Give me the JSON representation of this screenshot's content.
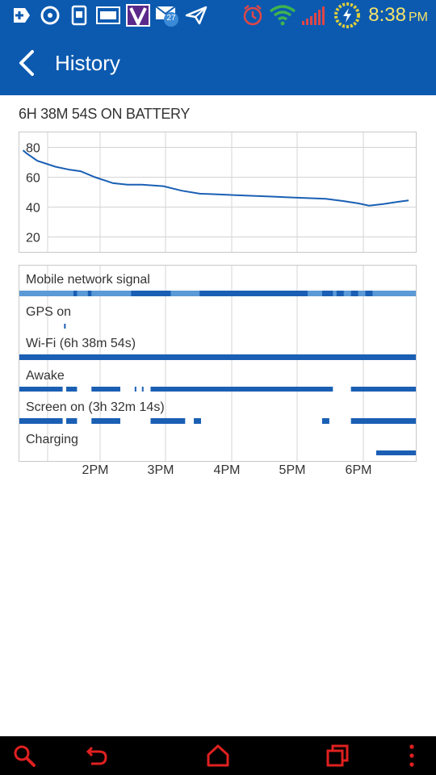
{
  "status_bar": {
    "time": "8:38",
    "ampm": "PM",
    "notification_badge": "27",
    "icons": [
      "add-icon",
      "sync-icon",
      "sd-card-icon",
      "image-icon",
      "verizon-icon",
      "mail-icon",
      "send-icon",
      "alarm-icon",
      "wifi-icon",
      "signal-icon",
      "battery-charging-icon"
    ]
  },
  "app_bar": {
    "title": "History",
    "background_color": "#0b5ab0"
  },
  "battery_heading": "6H 38M 54S ON BATTERY",
  "chart_data": {
    "type": "line",
    "title": "",
    "xlabel": "",
    "ylabel": "",
    "ylim": [
      10,
      90
    ],
    "yticks": [
      80,
      60,
      40,
      20
    ],
    "x_ticks": [
      "2PM",
      "3PM",
      "4PM",
      "5PM",
      "6PM"
    ],
    "x": [
      13.55,
      13.6,
      13.75,
      14.0,
      14.2,
      14.35,
      14.55,
      14.8,
      15.0,
      15.2,
      15.5,
      15.75,
      16.0,
      16.25,
      16.5,
      16.75,
      17.0,
      17.25,
      17.5,
      17.75,
      18.0,
      18.2,
      18.35,
      18.55,
      18.75,
      18.9
    ],
    "series": [
      {
        "values": [
          78,
          76,
          71,
          67,
          65,
          64,
          60,
          56,
          55,
          55,
          54,
          51,
          49,
          48.5,
          48,
          47.5,
          47,
          46.5,
          46,
          45.5,
          44,
          42.5,
          41,
          42,
          43.5,
          44.5
        ],
        "color": "#1a5fb4"
      }
    ],
    "grid": true
  },
  "timeline": {
    "rows": [
      {
        "label": "Mobile network signal"
      },
      {
        "label": "GPS on"
      },
      {
        "label": "Wi-Fi (6h 38m 54s)"
      },
      {
        "label": "Awake"
      },
      {
        "label": "Screen on (3h 32m 14s)"
      },
      {
        "label": "Charging"
      }
    ],
    "segments": {
      "gps": [
        [
          14.12,
          14.14
        ]
      ],
      "wifi": [
        [
          13.5,
          19.0
        ]
      ],
      "awake": [
        [
          13.5,
          14.1
        ],
        [
          14.15,
          14.3
        ],
        [
          14.5,
          14.9
        ],
        [
          15.1,
          15.12
        ],
        [
          15.2,
          15.22
        ],
        [
          15.32,
          17.85
        ],
        [
          18.1,
          19.0
        ]
      ],
      "screen": [
        [
          13.5,
          14.1
        ],
        [
          14.15,
          14.3
        ],
        [
          14.5,
          14.9
        ],
        [
          15.32,
          15.8
        ],
        [
          15.92,
          16.02
        ],
        [
          17.7,
          17.8
        ],
        [
          18.1,
          19.0
        ]
      ],
      "charging": [
        [
          18.45,
          19.0
        ]
      ]
    }
  },
  "nav_bar": {
    "buttons": [
      "search",
      "back",
      "home",
      "recent-apps",
      "menu"
    ]
  }
}
